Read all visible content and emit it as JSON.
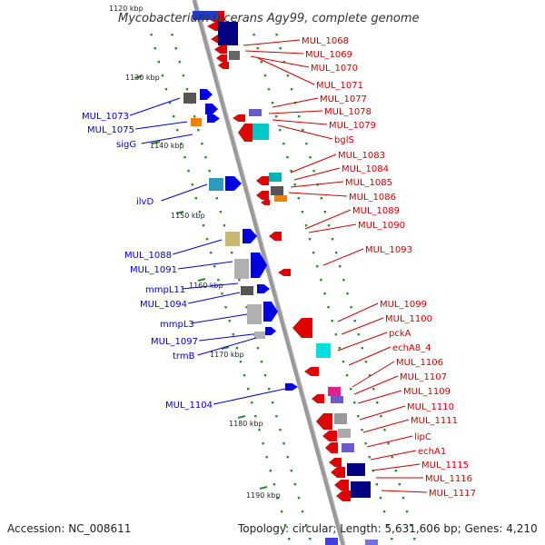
{
  "title": "Mycobacterium ulcerans Agy99, complete genome",
  "footer": {
    "accession": "Accession: NC_008611",
    "summary": "Topology: circular; Length: 5,631,606 bp; Genes: 4,210"
  },
  "ticks": [
    "1120 kbp",
    "1130 kbp",
    "1140 kbp",
    "1150 kbp",
    "1160 kbp",
    "1170 kbp",
    "1180 kbp",
    "1190 kbp"
  ],
  "colors": {
    "forward_labels": "#0000cc",
    "reverse_labels": "#cc0000",
    "backbone": "#999999",
    "ruler": "#228b22"
  },
  "left_labels": [
    "MUL_1073",
    "MUL_1075",
    "sigG",
    "ilvD",
    "MUL_1088",
    "MUL_1091",
    "mmpL11",
    "MUL_1094",
    "mmpL3",
    "MUL_1097",
    "trmB",
    "MUL_1104"
  ],
  "right_labels": [
    "MUL_1068",
    "MUL_1069",
    "MUL_1070",
    "MUL_1071",
    "MUL_1077",
    "MUL_1078",
    "MUL_1079",
    "bglS",
    "MUL_1083",
    "MUL_1084",
    "MUL_1085",
    "MUL_1086",
    "MUL_1089",
    "MUL_1090",
    "MUL_1093",
    "MUL_1099",
    "MUL_1100",
    "pckA",
    "echA8_4",
    "MUL_1106",
    "MUL_1107",
    "MUL_1109",
    "MUL_1110",
    "MUL_1111",
    "lipC",
    "echA1",
    "MUL_1115",
    "MUL_1116",
    "MUL_1117"
  ]
}
